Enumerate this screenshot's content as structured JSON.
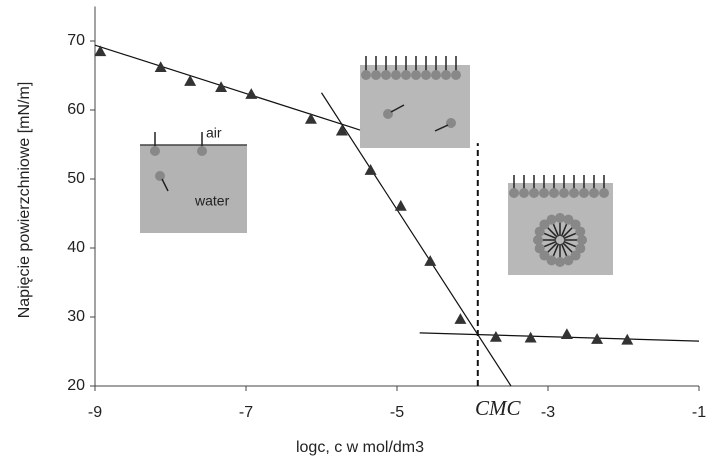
{
  "chart_data": {
    "type": "scatter",
    "x_label": "logc, c w mol/dm3",
    "y_label": "Napięcie powierzchniowe [mN/m]",
    "x": [
      -8.93,
      -8.13,
      -7.74,
      -7.33,
      -6.93,
      -6.14,
      -5.73,
      -5.35,
      -4.95,
      -4.56,
      -4.16,
      -3.69,
      -3.23,
      -2.75,
      -2.35,
      -1.95
    ],
    "values": [
      68.5,
      66.2,
      64.2,
      63.3,
      62.3,
      58.7,
      57.0,
      51.3,
      46.1,
      38.1,
      29.7,
      27.1,
      27.0,
      27.5,
      26.8,
      26.7
    ],
    "color": "#333333",
    "marker": "triangle",
    "fit_lines": [
      {
        "x": [
          -9,
          -5.49
        ],
        "y": [
          69.4,
          57.1
        ]
      },
      {
        "x": [
          -6.0,
          -3.49
        ],
        "y": [
          62.5,
          20
        ]
      },
      {
        "x": [
          -4.7,
          -1
        ],
        "y": [
          27.7,
          26.5
        ]
      }
    ],
    "cmc": {
      "label": "CMC",
      "x": -3.93,
      "y": [
        20,
        55.2
      ]
    },
    "inset_labels": [
      "air",
      "water"
    ],
    "xlim": [
      -9,
      -1
    ],
    "xticks": [
      -9,
      -7,
      -5,
      -3,
      -1
    ],
    "ylim": [
      20,
      75
    ],
    "yticks": [
      20,
      30,
      40,
      50,
      60,
      70
    ],
    "grid": false
  }
}
